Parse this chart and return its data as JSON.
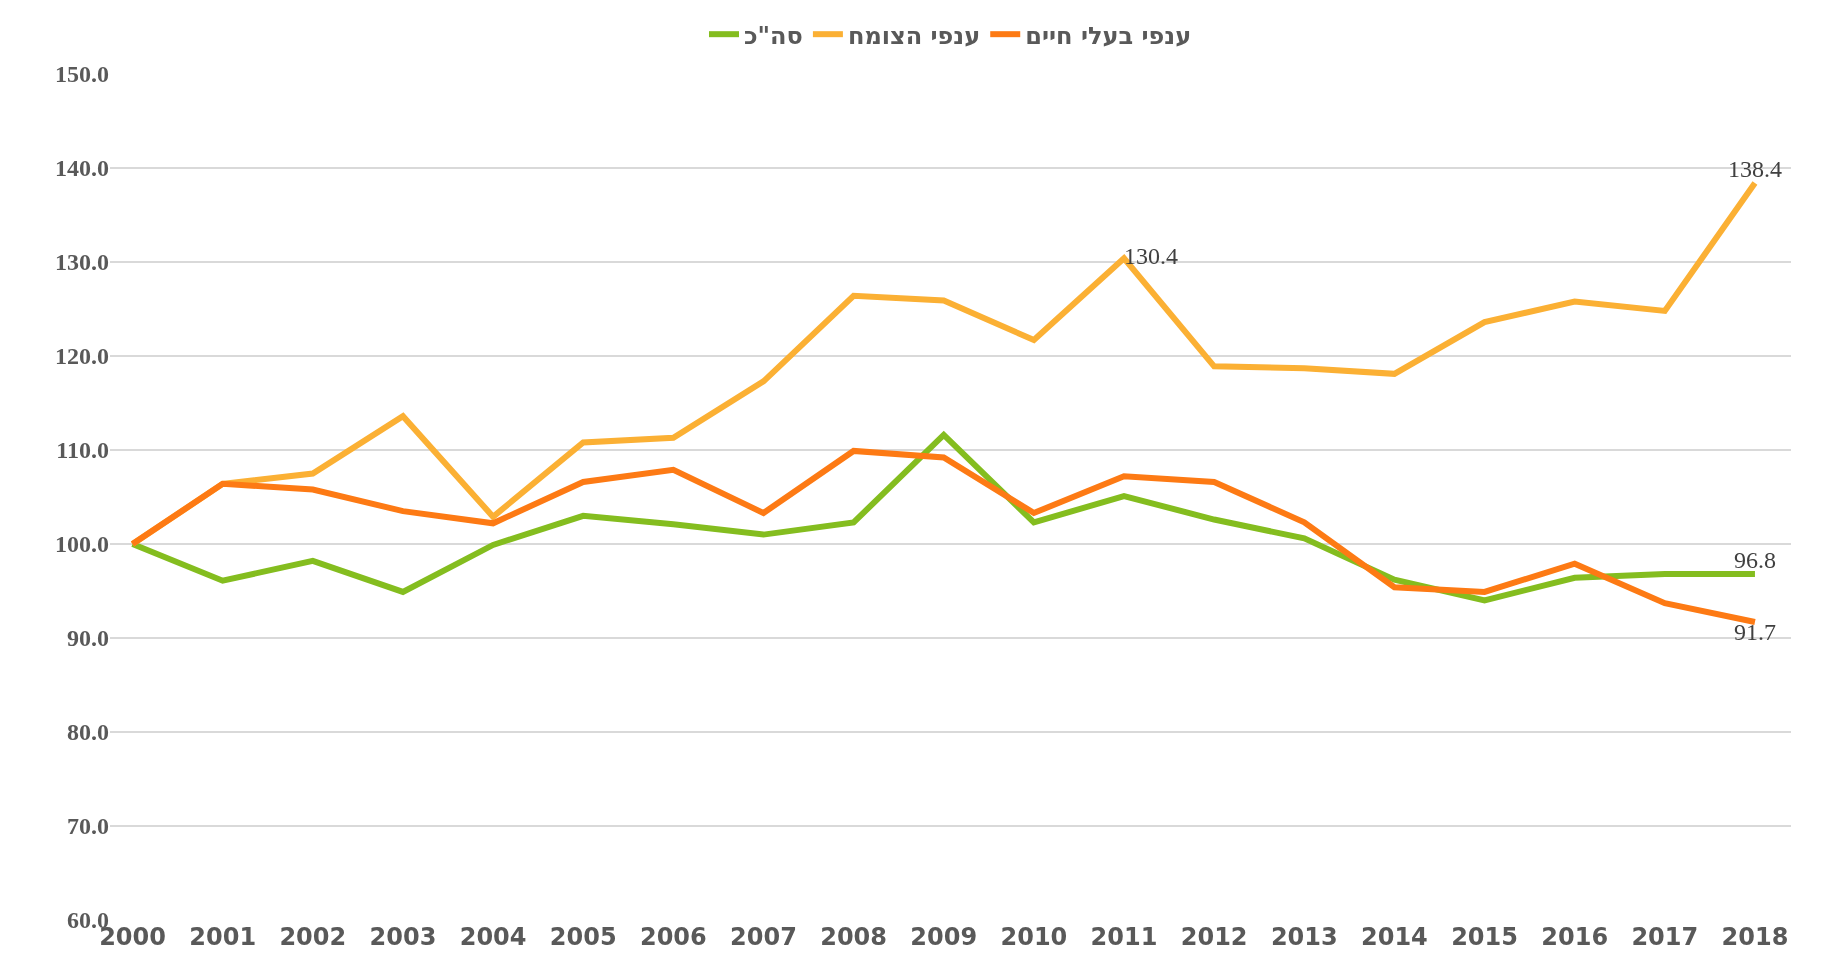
{
  "chart_data": {
    "type": "line",
    "categories": [
      "2000",
      "2001",
      "2002",
      "2003",
      "2004",
      "2005",
      "2006",
      "2007",
      "2008",
      "2009",
      "2010",
      "2011",
      "2012",
      "2013",
      "2014",
      "2015",
      "2016",
      "2017",
      "2018"
    ],
    "series": [
      {
        "name": "סה\"כ",
        "color": "#84bd1f",
        "values": [
          100.0,
          96.1,
          98.2,
          94.9,
          99.9,
          103.0,
          102.1,
          101.0,
          102.3,
          111.6,
          102.3,
          105.1,
          102.6,
          100.6,
          96.2,
          94.0,
          96.4,
          96.8,
          96.8
        ],
        "value_labels": [
          null,
          null,
          null,
          null,
          null,
          null,
          null,
          null,
          null,
          null,
          null,
          null,
          null,
          null,
          null,
          null,
          null,
          null,
          "96.8"
        ]
      },
      {
        "name": "ענפי הצומח",
        "color": "#fbb034",
        "values": [
          100.0,
          106.4,
          107.5,
          113.6,
          102.9,
          110.8,
          111.3,
          117.3,
          126.4,
          125.9,
          121.7,
          130.4,
          118.9,
          118.7,
          118.1,
          123.6,
          125.8,
          124.8,
          138.4
        ],
        "value_labels": [
          null,
          null,
          null,
          null,
          null,
          null,
          null,
          null,
          null,
          null,
          null,
          "130.4",
          null,
          null,
          null,
          null,
          null,
          null,
          "138.4"
        ]
      },
      {
        "name": "ענפי בעלי חיים",
        "color": "#fd7a14",
        "values": [
          100.0,
          106.4,
          105.8,
          103.5,
          102.2,
          106.6,
          107.9,
          103.3,
          109.9,
          109.2,
          103.3,
          107.2,
          106.6,
          102.3,
          95.4,
          94.9,
          97.9,
          93.7,
          91.7
        ],
        "value_labels": [
          null,
          null,
          null,
          null,
          null,
          null,
          null,
          null,
          null,
          null,
          null,
          null,
          null,
          null,
          null,
          null,
          null,
          null,
          "91.7"
        ]
      }
    ],
    "ylim": [
      60,
      150
    ],
    "yticks": [
      {
        "value": 60,
        "label": "60.0"
      },
      {
        "value": 70,
        "label": "70.0"
      },
      {
        "value": 80,
        "label": "80.0"
      },
      {
        "value": 90,
        "label": "90.0"
      },
      {
        "value": 100,
        "label": "100.0"
      },
      {
        "value": 110,
        "label": "110.0"
      },
      {
        "value": 120,
        "label": "120.0"
      },
      {
        "value": 130,
        "label": "130.0"
      },
      {
        "value": 140,
        "label": "140.0"
      },
      {
        "value": 150,
        "label": "150.0"
      }
    ],
    "grid": "y",
    "legend": "top",
    "marker": "none",
    "line_style": "solid"
  }
}
